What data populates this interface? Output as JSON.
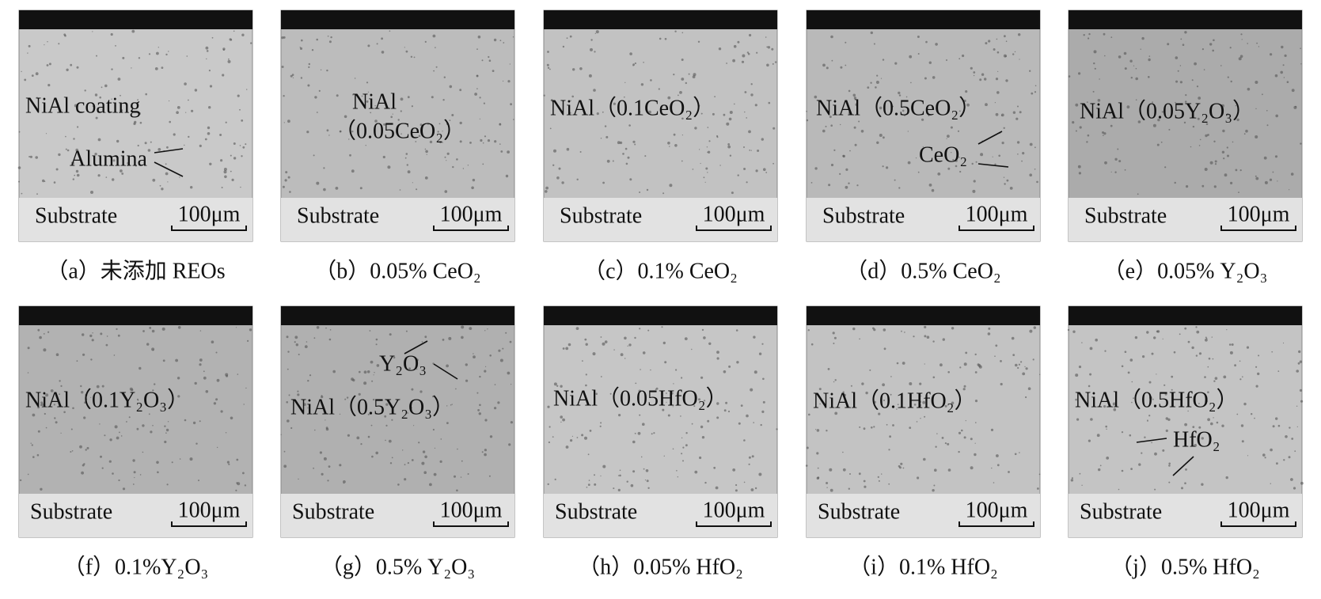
{
  "panels": [
    {
      "coating_label": [
        "NiAl coating"
      ],
      "annotation": "Alumina",
      "substrate": "Substrate",
      "scale_bar": "100μm",
      "caption": "（a）未添加 REOs"
    },
    {
      "coating_label": [
        "NiAl",
        "（0.05CeO₂）"
      ],
      "substrate": "Substrate",
      "scale_bar": "100μm",
      "caption": "（b）0.05% CeO₂"
    },
    {
      "coating_label": [
        "NiAl（0.1CeO₂）"
      ],
      "substrate": "Substrate",
      "scale_bar": "100μm",
      "caption": "（c）0.1% CeO₂"
    },
    {
      "coating_label": [
        "NiAl（0.5CeO₂）"
      ],
      "annotation": "CeO₂",
      "substrate": "Substrate",
      "scale_bar": "100μm",
      "caption": "（d）0.5% CeO₂"
    },
    {
      "coating_label": [
        "NiAl（0.05Y₂O₃）"
      ],
      "substrate": "Substrate",
      "scale_bar": "100μm",
      "caption": "（e）0.05% Y₂O₃"
    },
    {
      "coating_label": [
        "NiAl（0.1Y₂O₃）"
      ],
      "substrate": "Substrate",
      "scale_bar": "100μm",
      "caption": "（f）0.1%Y₂O₃"
    },
    {
      "coating_label": [
        "NiAl（0.5Y₂O₃）"
      ],
      "annotation": "Y₂O₃",
      "substrate": "Substrate",
      "scale_bar": "100μm",
      "caption": "（g）0.5% Y₂O₃"
    },
    {
      "coating_label": [
        "NiAl（0.05HfO₂）"
      ],
      "substrate": "Substrate",
      "scale_bar": "100μm",
      "caption": "（h）0.05% HfO₂"
    },
    {
      "coating_label": [
        "NiAl（0.1HfO₂）"
      ],
      "substrate": "Substrate",
      "scale_bar": "100μm",
      "caption": "（i）0.1% HfO₂"
    },
    {
      "coating_label": [
        "NiAl（0.5HfO₂）"
      ],
      "annotation": "HfO₂",
      "substrate": "Substrate",
      "scale_bar": "100μm",
      "caption": "（j）0.5% HfO₂"
    }
  ]
}
